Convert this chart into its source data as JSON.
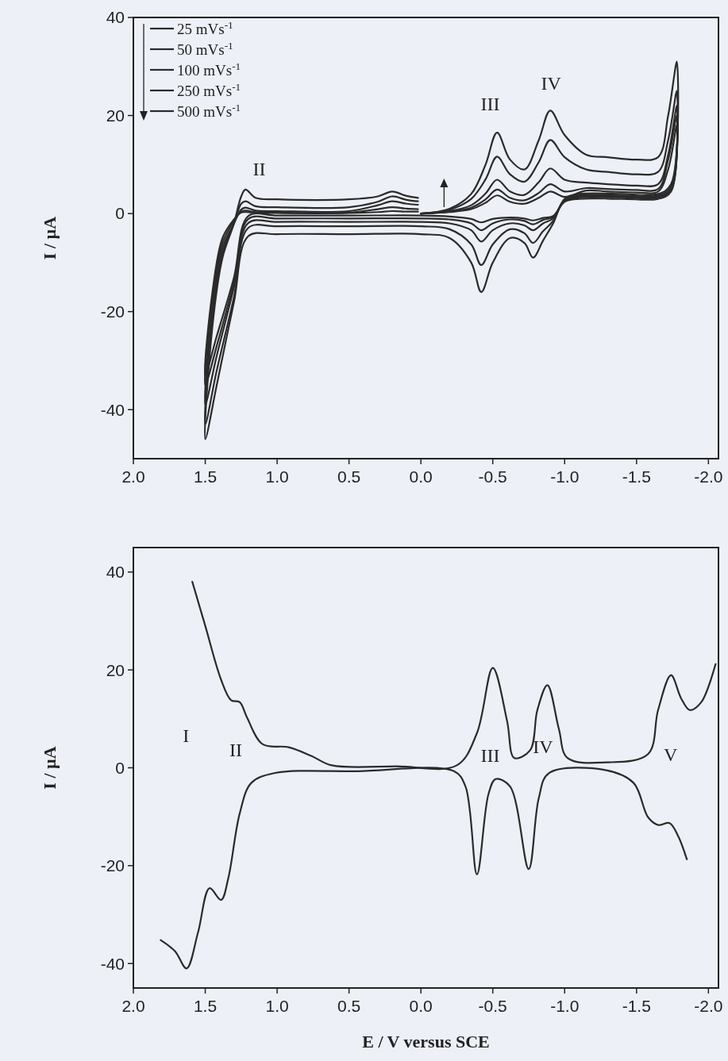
{
  "chart_data": [
    {
      "type": "line",
      "ylabel": "I / µA",
      "legend": "top left",
      "xlim": [
        2.0,
        -2.07
      ],
      "ylim": [
        -50,
        40
      ],
      "xticks": [
        {
          "value": 2,
          "label": "2.0"
        },
        1.5,
        {
          "value": 1,
          "label": "1.0"
        },
        0.5,
        {
          "value": 0,
          "label": "0.0"
        },
        -0.5,
        {
          "value": -1,
          "label": "-1.0"
        },
        -1.5,
        {
          "value": -2,
          "label": "-2.0"
        }
      ],
      "yticks": [
        -40,
        -20,
        0,
        20,
        40
      ],
      "x": [
        0,
        -0.2,
        -0.35,
        -0.45,
        -0.53,
        -0.62,
        -0.72,
        -0.82,
        -0.9,
        -1.0,
        -1.15,
        -1.3,
        -1.5,
        -1.65,
        -1.72,
        -1.78,
        -1.74,
        -1.65,
        -1.4,
        -1.1,
        -1.0,
        -0.92,
        -0.85,
        -0.78,
        -0.72,
        -0.62,
        -0.5,
        -0.42,
        -0.35,
        -0.2,
        0,
        0.5,
        1.0,
        1.2,
        1.3,
        1.42,
        1.5,
        1.45,
        1.38,
        1.3,
        1.25,
        1.22,
        1.15,
        1.0,
        0.5,
        0.3,
        0.2,
        0.1,
        0.02
      ],
      "series": [
        {
          "name": "25 mVs$^{-1}$",
          "color": "#2b2b2b",
          "values": [
            0,
            0.3,
            0.9,
            2.2,
            3.7,
            2.4,
            2,
            3.2,
            4.5,
            3.4,
            4.7,
            4.5,
            4.3,
            4.5,
            9,
            18,
            4.5,
            3,
            3,
            3,
            2.4,
            -0.5,
            -0.9,
            -1.4,
            -1,
            -0.8,
            -1.1,
            -1.8,
            -1.1,
            -0.6,
            -0.4,
            -0.4,
            -0.4,
            -0.5,
            -13,
            -25,
            -33,
            -16,
            -5,
            -1.2,
            0.2,
            0.3,
            0.2,
            0.1,
            0.1,
            0.3,
            0.5,
            0.4,
            0.4
          ]
        },
        {
          "name": "50 mVs$^{-1}$",
          "color": "#2b2b2b",
          "values": [
            0,
            0.4,
            1.2,
            2.9,
            4.9,
            3.2,
            2.7,
            4.2,
            6,
            4.5,
            5.2,
            5,
            4.8,
            5,
            11,
            20,
            4.8,
            3.3,
            3.3,
            3.3,
            2.6,
            -0.7,
            -1.3,
            -2.2,
            -1.5,
            -1.2,
            -2,
            -3.4,
            -2,
            -1.2,
            -1,
            -1,
            -1,
            -1.1,
            -14,
            -27,
            -35,
            -17,
            -6,
            -1.5,
            0.4,
            0.6,
            0.3,
            0.2,
            0.2,
            0.9,
            1.3,
            1,
            0.9
          ]
        },
        {
          "name": "100 mVs$^{-1}$",
          "color": "#2b2b2b",
          "values": [
            0,
            0.5,
            1.7,
            4.1,
            6.9,
            4.5,
            3.8,
            6.4,
            9.2,
            6.9,
            6.3,
            6,
            5.7,
            6,
            12,
            22,
            5,
            3.5,
            3.5,
            3.5,
            2.8,
            -1,
            -2,
            -3.4,
            -2.4,
            -2,
            -3.4,
            -5.7,
            -3.4,
            -2,
            -1.7,
            -1.7,
            -1.7,
            -1.9,
            -15,
            -29,
            -39,
            -19,
            -7,
            -2,
            0.8,
            1.2,
            0.6,
            0.5,
            0.5,
            1.7,
            2.5,
            2,
            1.8
          ]
        },
        {
          "name": "250 mVs$^{-1}$",
          "color": "#2b2b2b",
          "values": [
            0,
            0.8,
            3,
            7,
            11.6,
            8,
            6.5,
            10.5,
            15,
            11.5,
            9,
            8.5,
            8,
            8.5,
            15,
            25,
            5.5,
            3.7,
            3.7,
            3.7,
            2.8,
            -1.5,
            -3.6,
            -6,
            -4,
            -3.2,
            -6.3,
            -10.5,
            -6.3,
            -3.2,
            -2.6,
            -2.6,
            -2.6,
            -2.9,
            -17,
            -32,
            -43,
            -21,
            -8,
            -2,
            2,
            2.5,
            1.5,
            1.3,
            1.3,
            2.4,
            3.5,
            2.8,
            2.5
          ]
        },
        {
          "name": "500 mVs$^{-1}$",
          "color": "#2b2b2b",
          "values": [
            0,
            1,
            4,
            10,
            16.5,
            11,
            9,
            15,
            21,
            16,
            12,
            11.5,
            11,
            11.5,
            20,
            31,
            6,
            4,
            4,
            4,
            3,
            -2,
            -5.5,
            -9,
            -6,
            -5,
            -10,
            -16,
            -10,
            -5,
            -4.2,
            -4.2,
            -4.2,
            -4.6,
            -18,
            -35,
            -46,
            -23,
            -9,
            -2,
            3.5,
            4.9,
            3.2,
            2.9,
            2.9,
            3.5,
            4.5,
            3.6,
            3.2
          ]
        }
      ],
      "annotations": [
        "II",
        "III",
        "IV"
      ]
    },
    {
      "type": "line",
      "xlabel": "E / V versus SCE",
      "ylabel": "I / µA",
      "xlim": [
        2.0,
        -2.07
      ],
      "ylim": [
        -45,
        45
      ],
      "xticks": [
        {
          "value": 2,
          "label": "2.0"
        },
        1.5,
        {
          "value": 1,
          "label": "1.0"
        },
        0.5,
        {
          "value": 0,
          "label": "0.0"
        },
        -0.5,
        {
          "value": -1,
          "label": "-1.0"
        },
        -1.5,
        {
          "value": -2,
          "label": "-2.0"
        }
      ],
      "yticks": [
        -40,
        -20,
        0,
        20,
        40
      ],
      "series": [
        {
          "color": "#2b2b2b",
          "x": [
            1.59,
            1.5,
            1.39,
            1.32,
            1.26,
            1.21,
            1.1,
            0.92,
            0.76,
            0.62,
            0.17,
            -0.25,
            -0.39,
            -0.5,
            -0.6,
            -0.65,
            -0.76,
            -0.81,
            -0.88,
            -0.96,
            -1.02,
            -1.29,
            -1.58,
            -1.65,
            -1.74,
            -1.81,
            -1.87,
            -1.95,
            -2.05
          ],
          "values": [
            38,
            29,
            18,
            13.8,
            13.4,
            10.3,
            4.8,
            4.2,
            2.4,
            0.5,
            0.3,
            0.5,
            7.1,
            20.4,
            9.5,
            2,
            3.6,
            11.8,
            16.9,
            7.9,
            2,
            1.1,
            2.8,
            11.8,
            18.9,
            14.2,
            11.8,
            13.4,
            21.2
          ]
        },
        {
          "color": "#2b2b2b",
          "x": [
            1.81,
            1.71,
            1.63,
            1.55,
            1.47,
            1.39,
            1.34,
            1.26,
            1.18,
            1.02,
            0.44,
            -0.23,
            -0.31,
            -0.39,
            -0.47,
            -0.52,
            -0.62,
            -0.75,
            -0.82,
            -0.89,
            -1.29,
            -1.48,
            -1.58,
            -1.65,
            -1.73,
            -1.79,
            -1.85
          ],
          "values": [
            -35.2,
            -37.5,
            -41,
            -33.6,
            -24.6,
            -27,
            -22.6,
            -9.3,
            -3.1,
            -1.1,
            -0.7,
            -0.7,
            -3.8,
            -21.8,
            -5.4,
            -2.3,
            -3.8,
            -20.7,
            -6.2,
            -1.1,
            -0.5,
            -3.1,
            -10.1,
            -11.7,
            -11.3,
            -14,
            -18.7
          ]
        }
      ],
      "annotations": [
        "I",
        "II",
        "III",
        "IV",
        "V"
      ]
    }
  ]
}
